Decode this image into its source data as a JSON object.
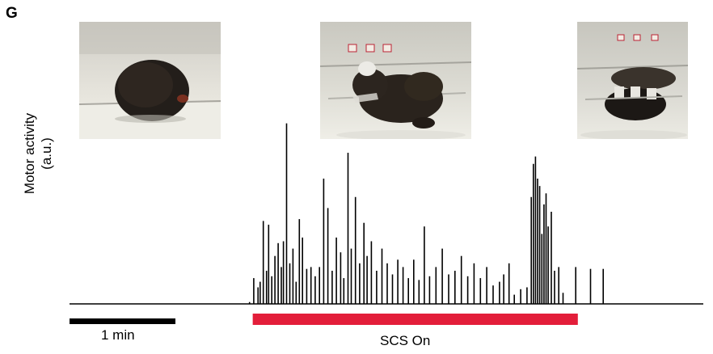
{
  "panel_label": "G",
  "colors": {
    "trace": "#000000",
    "stim_bar": "#e31e3a",
    "scale_bar": "#000000"
  },
  "photos": [
    {
      "name": "photo-before",
      "description_icon": "hunched-animal-photo-icon"
    },
    {
      "name": "photo-during",
      "description_icon": "animal-with-headset-photo-icon"
    },
    {
      "name": "photo-after",
      "description_icon": "animal-lying-photo-icon"
    }
  ],
  "chart_data": {
    "type": "line",
    "title": "",
    "xlabel": "",
    "ylabel": "Motor activity (a.u.)",
    "ylabel_lines": [
      "Motor activity",
      "(a.u.)"
    ],
    "x_units": "min",
    "xlim": [
      0,
      6.7
    ],
    "ylim": [
      0,
      1
    ],
    "grid": false,
    "scale_bar": {
      "length": 1,
      "label": "1 min"
    },
    "stimulation": {
      "label": "SCS On",
      "start": 1.73,
      "end": 4.8
    },
    "spikes": [
      [
        1.7,
        0.01
      ],
      [
        1.74,
        0.14
      ],
      [
        1.78,
        0.09
      ],
      [
        1.8,
        0.12
      ],
      [
        1.83,
        0.45
      ],
      [
        1.86,
        0.18
      ],
      [
        1.88,
        0.43
      ],
      [
        1.91,
        0.15
      ],
      [
        1.94,
        0.26
      ],
      [
        1.97,
        0.33
      ],
      [
        2.0,
        0.2
      ],
      [
        2.02,
        0.34
      ],
      [
        2.05,
        0.98
      ],
      [
        2.08,
        0.22
      ],
      [
        2.11,
        0.3
      ],
      [
        2.14,
        0.12
      ],
      [
        2.17,
        0.46
      ],
      [
        2.2,
        0.36
      ],
      [
        2.24,
        0.19
      ],
      [
        2.28,
        0.2
      ],
      [
        2.32,
        0.15
      ],
      [
        2.36,
        0.2
      ],
      [
        2.4,
        0.68
      ],
      [
        2.44,
        0.52
      ],
      [
        2.48,
        0.18
      ],
      [
        2.52,
        0.36
      ],
      [
        2.56,
        0.28
      ],
      [
        2.59,
        0.14
      ],
      [
        2.63,
        0.82
      ],
      [
        2.66,
        0.3
      ],
      [
        2.7,
        0.58
      ],
      [
        2.74,
        0.22
      ],
      [
        2.78,
        0.44
      ],
      [
        2.81,
        0.26
      ],
      [
        2.85,
        0.34
      ],
      [
        2.9,
        0.18
      ],
      [
        2.95,
        0.3
      ],
      [
        3.0,
        0.22
      ],
      [
        3.05,
        0.16
      ],
      [
        3.1,
        0.24
      ],
      [
        3.15,
        0.2
      ],
      [
        3.2,
        0.14
      ],
      [
        3.25,
        0.24
      ],
      [
        3.3,
        0.13
      ],
      [
        3.35,
        0.42
      ],
      [
        3.4,
        0.15
      ],
      [
        3.46,
        0.2
      ],
      [
        3.52,
        0.3
      ],
      [
        3.58,
        0.16
      ],
      [
        3.64,
        0.18
      ],
      [
        3.7,
        0.26
      ],
      [
        3.76,
        0.15
      ],
      [
        3.82,
        0.22
      ],
      [
        3.88,
        0.14
      ],
      [
        3.94,
        0.2
      ],
      [
        4.0,
        0.1
      ],
      [
        4.06,
        0.12
      ],
      [
        4.1,
        0.16
      ],
      [
        4.15,
        0.22
      ],
      [
        4.2,
        0.05
      ],
      [
        4.26,
        0.08
      ],
      [
        4.32,
        0.09
      ],
      [
        4.36,
        0.58
      ],
      [
        4.38,
        0.76
      ],
      [
        4.4,
        0.8
      ],
      [
        4.42,
        0.68
      ],
      [
        4.44,
        0.64
      ],
      [
        4.46,
        0.38
      ],
      [
        4.48,
        0.54
      ],
      [
        4.5,
        0.6
      ],
      [
        4.52,
        0.42
      ],
      [
        4.55,
        0.5
      ],
      [
        4.58,
        0.18
      ],
      [
        4.62,
        0.2
      ],
      [
        4.66,
        0.06
      ],
      [
        4.78,
        0.2
      ],
      [
        4.92,
        0.19
      ],
      [
        5.04,
        0.19
      ]
    ]
  }
}
